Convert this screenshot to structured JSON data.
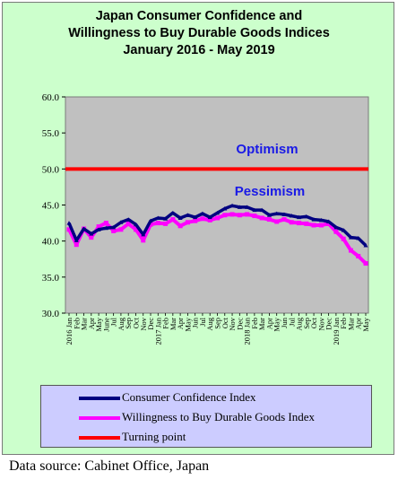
{
  "chart_data": {
    "type": "line",
    "title": [
      "Japan Consumer Confidence and",
      "Willingness to Buy Durable Goods Indices",
      "January 2016 - May 2019"
    ],
    "ylim": [
      30,
      60
    ],
    "y_ticks": [
      "30.0",
      "35.0",
      "40.0",
      "45.0",
      "50.0",
      "55.0",
      "60.0"
    ],
    "x_labels": [
      "2016 Jan",
      "Feb",
      "Mar",
      "Apr",
      "May",
      "June",
      "Jul",
      "Aug",
      "Sep",
      "Oct",
      "Nov",
      "Dec",
      "2017 Jan",
      "Feb",
      "Mar",
      "Apr",
      "May",
      "Jun",
      "Jul",
      "Aug",
      "Sep",
      "Oct",
      "Nov",
      "Dec",
      "2018 Jan",
      "Feb",
      "Mar",
      "Apr",
      "May",
      "Jun",
      "Jul",
      "Aug",
      "Sep",
      "Oct",
      "Nov",
      "Dec",
      "2019 Jan",
      "Feb",
      "Mar",
      "Apr",
      "May"
    ],
    "series": [
      {
        "name": "Consumer Confidence Index",
        "color": "#000080",
        "values": [
          42.5,
          40.1,
          41.7,
          41.0,
          41.6,
          41.8,
          41.9,
          42.6,
          43.0,
          42.3,
          40.9,
          42.8,
          43.2,
          43.1,
          43.9,
          43.2,
          43.6,
          43.3,
          43.8,
          43.3,
          43.9,
          44.5,
          44.9,
          44.7,
          44.7,
          44.3,
          44.3,
          43.6,
          43.8,
          43.7,
          43.5,
          43.3,
          43.4,
          43.0,
          42.9,
          42.7,
          41.9,
          41.5,
          40.5,
          40.4,
          39.4
        ]
      },
      {
        "name": "Willingness to Buy Durable Goods Index",
        "color": "#ff00ff",
        "values": [
          41.6,
          39.5,
          41.7,
          40.5,
          42.0,
          42.5,
          41.4,
          41.6,
          42.4,
          41.6,
          40.1,
          42.3,
          42.5,
          42.4,
          43.0,
          42.1,
          42.6,
          42.8,
          43.1,
          42.9,
          43.2,
          43.6,
          43.7,
          43.6,
          43.7,
          43.5,
          43.2,
          43.0,
          42.7,
          43.0,
          42.6,
          42.5,
          42.4,
          42.2,
          42.2,
          42.4,
          41.3,
          40.3,
          38.7,
          37.9,
          36.9
        ]
      },
      {
        "name": "Turning point",
        "color": "#ff0000",
        "values": [
          50,
          50
        ]
      }
    ],
    "annotations": [
      "Optimism",
      "Pessimism"
    ],
    "grid": false
  },
  "source": "Data source: Cabinet Office, Japan"
}
